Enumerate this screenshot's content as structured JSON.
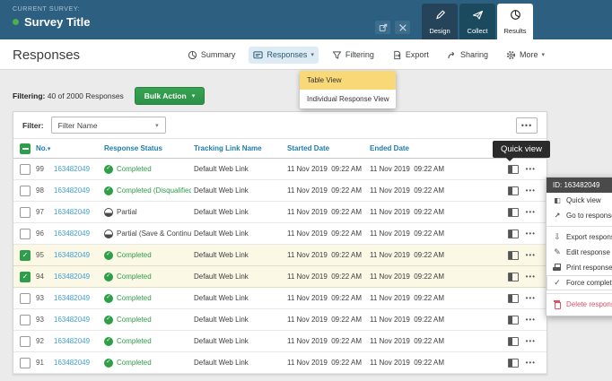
{
  "topbar": {
    "current_survey_label": "CURRENT SURVEY:",
    "survey_title": "Survey Title",
    "tabs": [
      {
        "label": "Design",
        "icon": "pencil-icon"
      },
      {
        "label": "Collect",
        "icon": "paper-plane-icon"
      },
      {
        "label": "Results",
        "icon": "pie-chart-icon",
        "active": true
      }
    ]
  },
  "menubar": {
    "page_title": "Responses",
    "items": [
      {
        "label": "Summary",
        "icon": "pie-chart-icon"
      },
      {
        "label": "Responses",
        "icon": "table-view-icon",
        "active": true,
        "caret": "▾"
      },
      {
        "label": "Filtering",
        "icon": "funnel-icon"
      },
      {
        "label": "Export",
        "icon": "export-icon"
      },
      {
        "label": "Sharing",
        "icon": "share-icon"
      },
      {
        "label": "More",
        "icon": "gear-icon",
        "caret": "▾"
      }
    ],
    "dropdown": {
      "items": [
        {
          "label": "Table View",
          "selected": true
        },
        {
          "label": "Individual Response View",
          "selected": false
        }
      ]
    }
  },
  "filter_summary": {
    "label": "Filtering:",
    "text": "40 of 2000 Responses",
    "bulk_action_label": "Bulk Action"
  },
  "table_card": {
    "filter_label": "Filter:",
    "filter_value": "Filter Name",
    "columns": [
      "No.",
      "Response Status",
      "Tracking Link Name",
      "Started Date",
      "Ended Date"
    ],
    "rows": [
      {
        "no": "99",
        "id": "163482049",
        "status": "Completed",
        "status_type": "completed",
        "tracking": "Default Web Link",
        "started": "11 Nov 2019  09:22 AM",
        "ended": "11 Nov 2019  09:22 AM",
        "checked": false,
        "highlighted": false
      },
      {
        "no": "98",
        "id": "163482049",
        "status": "Completed (Disqualified)",
        "status_type": "completed",
        "tracking": "Default Web Link",
        "started": "11 Nov 2019  09:22 AM",
        "ended": "11 Nov 2019  09:22 AM",
        "checked": false,
        "highlighted": false
      },
      {
        "no": "97",
        "id": "163482049",
        "status": "Partial",
        "status_type": "partial",
        "tracking": "Default Web Link",
        "started": "11 Nov 2019  09:22 AM",
        "ended": "11 Nov 2019  09:22 AM",
        "checked": false,
        "highlighted": false
      },
      {
        "no": "96",
        "id": "163482049",
        "status": "Partial (Save & Continue)",
        "status_type": "partial",
        "tracking": "Default Web Link",
        "started": "11 Nov 2019  09:22 AM",
        "ended": "11 Nov 2019  09:22 AM",
        "checked": false,
        "highlighted": false
      },
      {
        "no": "95",
        "id": "163482049",
        "status": "Completed",
        "status_type": "completed",
        "tracking": "Default Web Link",
        "started": "11 Nov 2019  09:22 AM",
        "ended": "11 Nov 2019  09:22 AM",
        "checked": true,
        "highlighted": true
      },
      {
        "no": "94",
        "id": "163482049",
        "status": "Completed",
        "status_type": "completed",
        "tracking": "Default Web Link",
        "started": "11 Nov 2019  09:22 AM",
        "ended": "11 Nov 2019  09:22 AM",
        "checked": true,
        "highlighted": true
      },
      {
        "no": "93",
        "id": "163482049",
        "status": "Completed",
        "status_type": "completed",
        "tracking": "Default Web Link",
        "started": "11 Nov 2019  09:22 AM",
        "ended": "11 Nov 2019  09:22 AM",
        "checked": false,
        "highlighted": false
      },
      {
        "no": "93",
        "id": "163482049",
        "status": "Completed",
        "status_type": "completed",
        "tracking": "Default Web Link",
        "started": "11 Nov 2019  09:22 AM",
        "ended": "11 Nov 2019  09:22 AM",
        "checked": false,
        "highlighted": false
      },
      {
        "no": "92",
        "id": "163482049",
        "status": "Completed",
        "status_type": "completed",
        "tracking": "Default Web Link",
        "started": "11 Nov 2019  09:22 AM",
        "ended": "11 Nov 2019  09:22 AM",
        "checked": false,
        "highlighted": false
      },
      {
        "no": "91",
        "id": "163482049",
        "status": "Completed",
        "status_type": "completed",
        "tracking": "Default Web Link",
        "started": "11 Nov 2019  09:22 AM",
        "ended": "11 Nov 2019  09:22 AM",
        "checked": false,
        "highlighted": false
      }
    ]
  },
  "tooltip": {
    "text": "Quick view"
  },
  "context_menu": {
    "header": "ID: 163482049",
    "items": [
      {
        "label": "Quick view",
        "icon": "quick-view-icon"
      },
      {
        "label": "Go to response",
        "icon": "external-link-icon"
      },
      {
        "divider": true
      },
      {
        "label": "Export response a",
        "icon": "export-icon"
      },
      {
        "label": "Edit response",
        "icon": "edit-icon"
      },
      {
        "label": "Print response",
        "icon": "printer-icon"
      },
      {
        "label": "Force complete",
        "icon": "check-icon",
        "hovered": true
      },
      {
        "divider": true
      },
      {
        "label": "Delete response",
        "icon": "trash-icon",
        "danger": true
      }
    ]
  },
  "colors": {
    "header_bg": "#2d6080",
    "accent_green": "#2f9e4c",
    "status_green": "#2e9e49",
    "link_blue": "#3da0da",
    "column_header_blue": "#1f7ca8",
    "dropdown_highlight": "#f9d878",
    "row_highlight": "#fbf8e6",
    "danger_red": "#e05263"
  }
}
